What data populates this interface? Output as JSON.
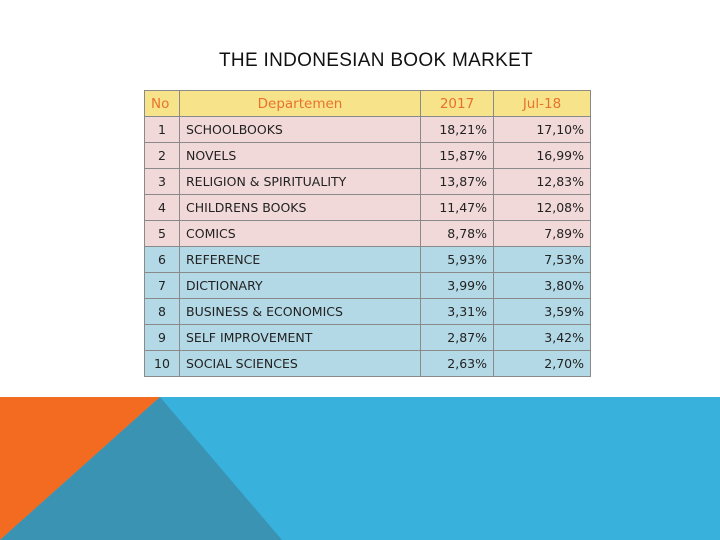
{
  "slide": {
    "title": "THE INDONESIAN BOOK MARKET"
  },
  "table": {
    "headers": {
      "no": "No",
      "department": "Departemen",
      "y2017": "2017",
      "jul18": "Jul-18"
    },
    "rows": [
      {
        "no": "1",
        "department": "SCHOOLBOOKS",
        "y2017": "18,21%",
        "jul18": "17,10%"
      },
      {
        "no": "2",
        "department": "NOVELS",
        "y2017": "15,87%",
        "jul18": "16,99%"
      },
      {
        "no": "3",
        "department": "RELIGION & SPIRITUALITY",
        "y2017": "13,87%",
        "jul18": "12,83%"
      },
      {
        "no": "4",
        "department": "CHILDRENS BOOKS",
        "y2017": "11,47%",
        "jul18": "12,08%"
      },
      {
        "no": "5",
        "department": "COMICS",
        "y2017": "8,78%",
        "jul18": "7,89%"
      },
      {
        "no": "6",
        "department": "REFERENCE",
        "y2017": "5,93%",
        "jul18": "7,53%"
      },
      {
        "no": "7",
        "department": "DICTIONARY",
        "y2017": "3,99%",
        "jul18": "3,80%"
      },
      {
        "no": "8",
        "department": "BUSINESS & ECONOMICS",
        "y2017": "3,31%",
        "jul18": "3,59%"
      },
      {
        "no": "9",
        "department": "SELF IMPROVEMENT",
        "y2017": "2,87%",
        "jul18": "3,42%"
      },
      {
        "no": "10",
        "department": "SOCIAL SCIENCES",
        "y2017": "2,63%",
        "jul18": "2,70%"
      }
    ]
  },
  "colors": {
    "header_bg": "#f7e48a",
    "header_text": "#e8722c",
    "top5_row_bg": "#f2d9d9",
    "other_row_bg": "#b3d9e6",
    "deco_orange": "#f26b21",
    "deco_teal": "#3a93b3",
    "deco_blue": "#38b1dd"
  }
}
